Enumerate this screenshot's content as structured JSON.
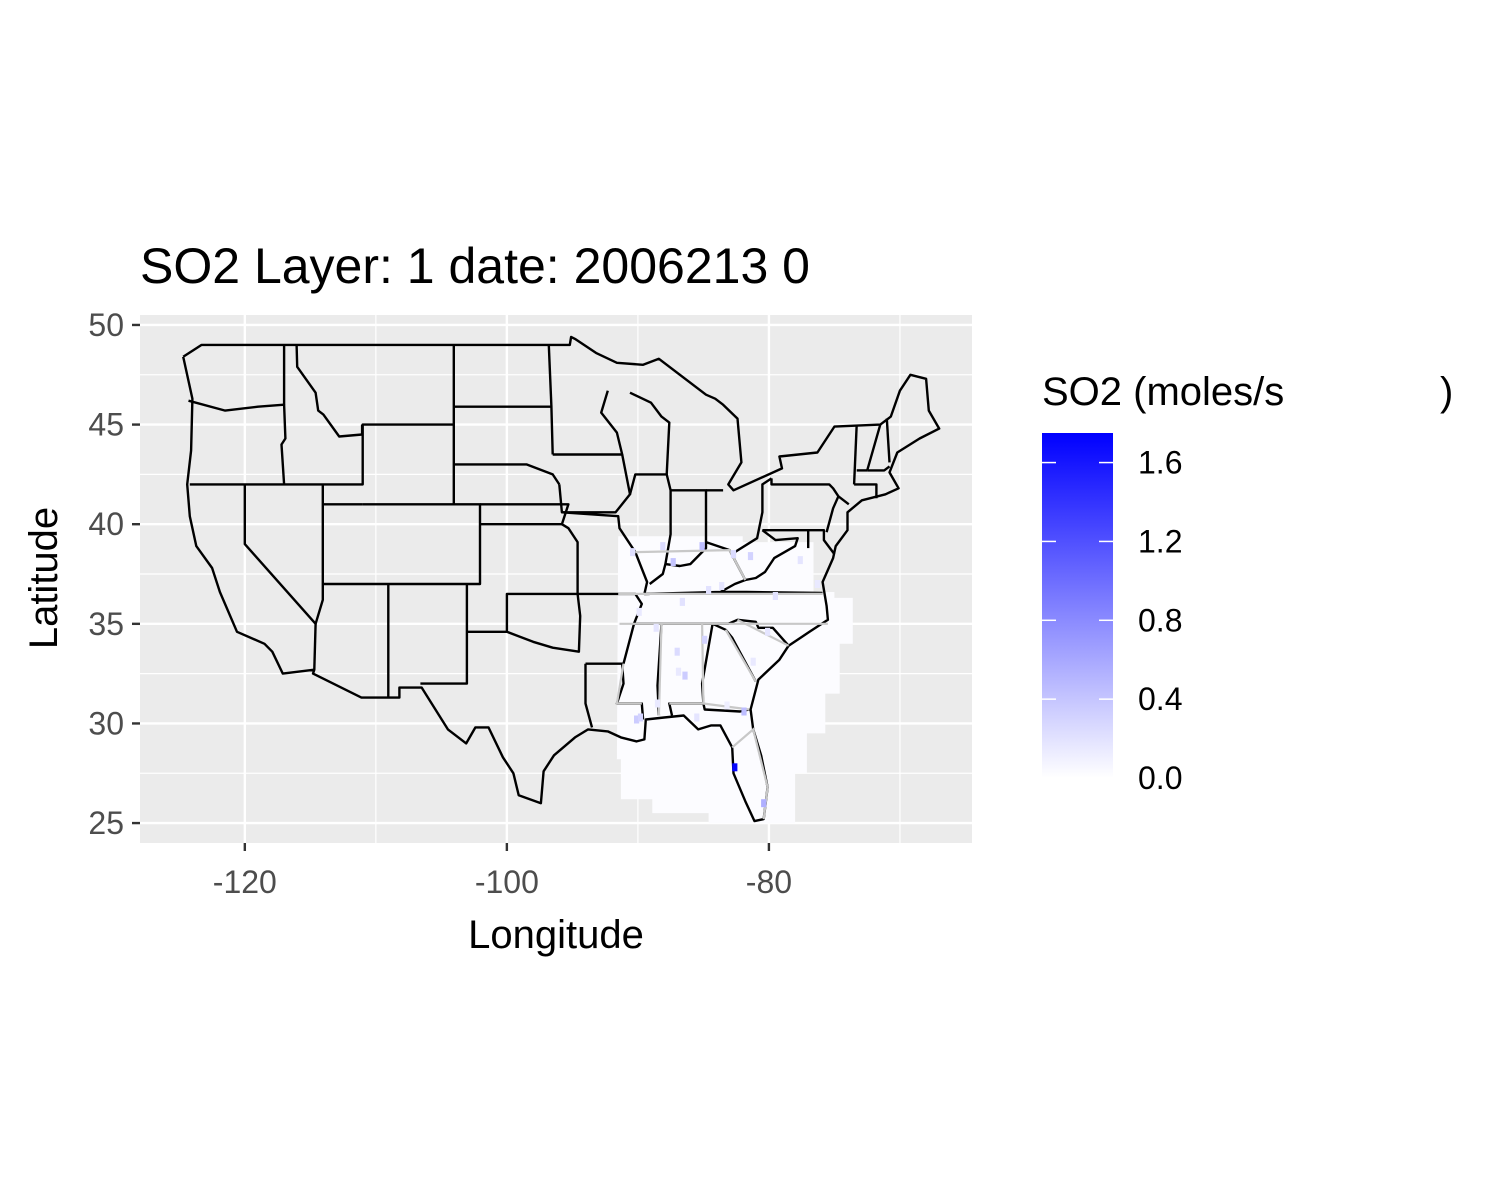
{
  "chart_data": {
    "type": "heatmap",
    "title": "SO2 Layer: 1 date: 2006213 0",
    "xlabel": "Longitude",
    "ylabel": "Latitude",
    "xlim": [
      -128,
      -64.5
    ],
    "ylim": [
      24,
      50.5
    ],
    "x_ticks": [
      -120,
      -100,
      -80
    ],
    "x_tick_labels": [
      "-120",
      "-100",
      "-80"
    ],
    "y_ticks": [
      25,
      30,
      35,
      40,
      45,
      50
    ],
    "y_tick_labels": [
      "25",
      "30",
      "35",
      "40",
      "45",
      "50"
    ],
    "grid": true,
    "legend": {
      "title": "SO2 (moles/s",
      "title_suffix": ")",
      "placement": "right",
      "min": 0,
      "max": 1.75,
      "ticks": [
        0.0,
        0.4,
        0.8,
        1.2,
        1.6
      ],
      "tick_labels": [
        "0.0",
        "0.4",
        "0.8",
        "1.2",
        "1.6"
      ],
      "low_color": "#ffffff",
      "high_color": "#0000ff"
    },
    "domain_lon": [
      -91.5,
      -73.5
    ],
    "domain_lat": [
      25.0,
      39.5
    ],
    "hotspots": [
      {
        "lon": -82.6,
        "lat": 27.8,
        "value": 1.7
      },
      {
        "lon": -80.4,
        "lat": 26.0,
        "value": 0.55
      },
      {
        "lon": -81.9,
        "lat": 30.6,
        "value": 0.45
      },
      {
        "lon": -85.1,
        "lat": 38.9,
        "value": 0.45
      },
      {
        "lon": -87.3,
        "lat": 38.1,
        "value": 0.4
      },
      {
        "lon": -90.1,
        "lat": 30.2,
        "value": 0.35
      },
      {
        "lon": -89.8,
        "lat": 30.3,
        "value": 0.3
      },
      {
        "lon": -86.4,
        "lat": 32.4,
        "value": 0.35
      },
      {
        "lon": -84.9,
        "lat": 34.2,
        "value": 0.3
      },
      {
        "lon": -87.0,
        "lat": 33.6,
        "value": 0.25
      },
      {
        "lon": -81.4,
        "lat": 38.4,
        "value": 0.3
      },
      {
        "lon": -88.1,
        "lat": 38.9,
        "value": 0.25
      },
      {
        "lon": -82.7,
        "lat": 38.5,
        "value": 0.25
      },
      {
        "lon": -84.6,
        "lat": 36.7,
        "value": 0.2
      },
      {
        "lon": -86.6,
        "lat": 36.1,
        "value": 0.2
      },
      {
        "lon": -79.5,
        "lat": 36.4,
        "value": 0.2
      },
      {
        "lon": -83.6,
        "lat": 36.9,
        "value": 0.18
      },
      {
        "lon": -88.6,
        "lat": 34.8,
        "value": 0.18
      },
      {
        "lon": -80.1,
        "lat": 34.6,
        "value": 0.18
      },
      {
        "lon": -81.2,
        "lat": 33.1,
        "value": 0.15
      },
      {
        "lon": -86.9,
        "lat": 32.6,
        "value": 0.15
      },
      {
        "lon": -90.4,
        "lat": 38.6,
        "value": 0.22
      },
      {
        "lon": -77.6,
        "lat": 38.2,
        "value": 0.18
      },
      {
        "lon": -76.3,
        "lat": 37.0,
        "value": 0.15
      },
      {
        "lon": -88.5,
        "lat": 31.0,
        "value": 0.15
      },
      {
        "lon": -83.2,
        "lat": 30.9,
        "value": 0.12
      },
      {
        "lon": -89.9,
        "lat": 35.6,
        "value": 0.15
      },
      {
        "lon": -85.5,
        "lat": 30.3,
        "value": 0.18
      }
    ],
    "domain_background_value": 0.02
  }
}
